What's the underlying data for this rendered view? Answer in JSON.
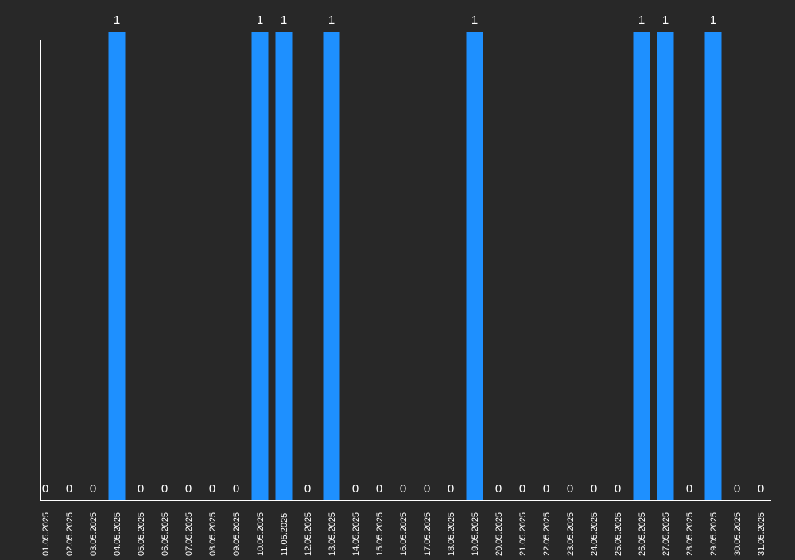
{
  "colors": {
    "background": "#282828",
    "bar": "#1e90ff",
    "axis": "#ffffff",
    "text": "#ffffff"
  },
  "chart_data": {
    "type": "bar",
    "categories": [
      "01.05.2025",
      "02.05.2025",
      "03.05.2025",
      "04.05.2025",
      "05.05.2025",
      "06.05.2025",
      "07.05.2025",
      "08.05.2025",
      "09.05.2025",
      "10.05.2025",
      "11.05.2025",
      "12.05.2025",
      "13.05.2025",
      "14.05.2025",
      "15.05.2025",
      "16.05.2025",
      "17.05.2025",
      "18.05.2025",
      "19.05.2025",
      "20.05.2025",
      "21.05.2025",
      "22.05.2025",
      "23.05.2025",
      "24.05.2025",
      "25.05.2025",
      "26.05.2025",
      "27.05.2025",
      "28.05.2025",
      "29.05.2025",
      "30.05.2025",
      "31.05.2025"
    ],
    "values": [
      0,
      0,
      0,
      1,
      0,
      0,
      0,
      0,
      0,
      1,
      1,
      0,
      1,
      0,
      0,
      0,
      0,
      0,
      1,
      0,
      0,
      0,
      0,
      0,
      0,
      1,
      1,
      0,
      1,
      0,
      0
    ],
    "title": "",
    "xlabel": "",
    "ylabel": "",
    "ylim": [
      0,
      1
    ],
    "grid": false,
    "data_labels": true,
    "tick_label_rotation": "vertical"
  }
}
